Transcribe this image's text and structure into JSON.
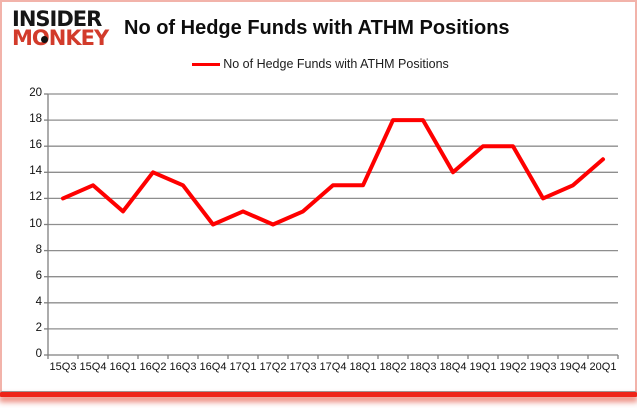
{
  "logo": {
    "line1": "INSIDER",
    "line2": "MONKEY"
  },
  "header": {
    "title": "No of Hedge Funds with ATHM Positions"
  },
  "legend": {
    "label": "No of Hedge Funds with ATHM Positions"
  },
  "colors": {
    "series_red": "#fe0000",
    "grid_gray": "#8e8e8e",
    "axis_gray": "#7f7f7f",
    "logo_black": "#161616",
    "logo_red": "#d23b2b",
    "card_border_pink": "#f2b3aa",
    "bottom_bar_red": "#ee2418"
  },
  "chart_data": {
    "type": "line",
    "title": "No of Hedge Funds with ATHM Positions",
    "categories": [
      "15Q3",
      "15Q4",
      "16Q1",
      "16Q2",
      "16Q3",
      "16Q4",
      "17Q1",
      "17Q2",
      "17Q3",
      "17Q4",
      "18Q1",
      "18Q2",
      "18Q3",
      "18Q4",
      "19Q1",
      "19Q2",
      "19Q3",
      "19Q4",
      "20Q1"
    ],
    "series": [
      {
        "name": "No of Hedge Funds with ATHM Positions",
        "color": "#fe0000",
        "values": [
          12,
          13,
          11,
          14,
          13,
          10,
          11,
          10,
          11,
          13,
          13,
          18,
          18,
          14,
          16,
          16,
          12,
          13,
          15
        ]
      }
    ],
    "xlabel": "",
    "ylabel": "",
    "ylim": [
      0,
      20
    ],
    "yticks": [
      0,
      2,
      4,
      6,
      8,
      10,
      12,
      14,
      16,
      18,
      20
    ],
    "grid": "horizontal",
    "legend_position": "top-center"
  }
}
